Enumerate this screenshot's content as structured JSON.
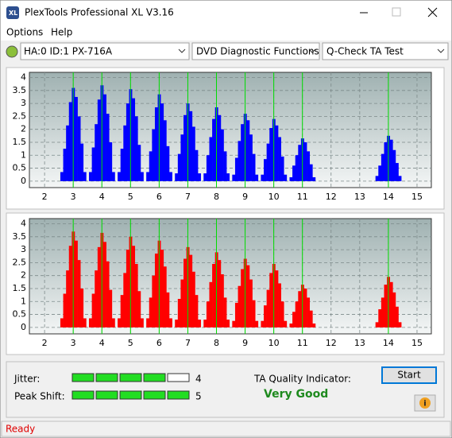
{
  "window": {
    "title": "PlexTools Professional XL V3.16"
  },
  "menu": [
    "Options",
    "Help"
  ],
  "toolbar": {
    "drive": "HA:0 ID:1  PX-716A",
    "function": "DVD Diagnostic Functions",
    "test": "Q-Check TA Test"
  },
  "chart_data": [
    {
      "type": "bar",
      "color": "#0000ff",
      "grid": true,
      "marker_color": "#00dd00",
      "xlim": [
        1.47,
        15.5
      ],
      "ylim": [
        -0.25,
        4.2
      ],
      "xticks": [
        2,
        3,
        4,
        5,
        6,
        7,
        8,
        9,
        10,
        11,
        12,
        13,
        14,
        15
      ],
      "yticks": [
        0,
        0.5,
        1,
        1.5,
        2,
        2.5,
        3,
        3.5,
        4
      ],
      "markers": [
        3,
        4,
        5,
        6,
        7,
        8,
        9,
        10,
        11,
        14
      ],
      "x": [
        2.6,
        2.7,
        2.8,
        2.9,
        3,
        3.1,
        3.2,
        3.3,
        3.4,
        3.6,
        3.7,
        3.8,
        3.9,
        4,
        4.1,
        4.2,
        4.3,
        4.4,
        4.6,
        4.7,
        4.8,
        4.9,
        5,
        5.1,
        5.2,
        5.3,
        5.4,
        5.6,
        5.7,
        5.8,
        5.9,
        6,
        6.1,
        6.2,
        6.3,
        6.4,
        6.6,
        6.7,
        6.8,
        6.9,
        7,
        7.1,
        7.2,
        7.3,
        7.4,
        7.6,
        7.7,
        7.8,
        7.9,
        8,
        8.1,
        8.2,
        8.3,
        8.4,
        8.6,
        8.7,
        8.8,
        8.9,
        9,
        9.1,
        9.2,
        9.3,
        9.4,
        9.6,
        9.7,
        9.8,
        9.9,
        10,
        10.1,
        10.2,
        10.3,
        10.4,
        10.6,
        10.7,
        10.8,
        10.9,
        11,
        11.1,
        11.2,
        11.3,
        11.4,
        13.6,
        13.7,
        13.8,
        13.9,
        14,
        14.1,
        14.2,
        14.3,
        14.4
      ],
      "values": [
        0.35,
        1.25,
        2.15,
        3.05,
        3.6,
        3.25,
        2.5,
        1.45,
        0.35,
        0.35,
        1.3,
        2.2,
        3.15,
        3.7,
        3.35,
        2.6,
        1.5,
        0.35,
        0.35,
        1.25,
        2.15,
        3.0,
        3.55,
        3.2,
        2.5,
        1.4,
        0.35,
        0.35,
        1.15,
        2.0,
        2.85,
        3.35,
        3.0,
        2.35,
        1.35,
        0.35,
        0.3,
        1.05,
        1.8,
        2.55,
        3.0,
        2.7,
        2.1,
        1.2,
        0.3,
        0.3,
        1.0,
        1.7,
        2.4,
        2.85,
        2.55,
        2.0,
        1.15,
        0.3,
        0.25,
        0.9,
        1.55,
        2.2,
        2.6,
        2.35,
        1.8,
        1.05,
        0.25,
        0.25,
        0.85,
        1.45,
        2.05,
        2.4,
        2.15,
        1.7,
        0.95,
        0.25,
        0.15,
        0.6,
        1.0,
        1.4,
        1.65,
        1.5,
        1.15,
        0.65,
        0.15,
        0.2,
        0.6,
        1.05,
        1.5,
        1.75,
        1.6,
        1.2,
        0.7,
        0.2
      ]
    },
    {
      "type": "bar",
      "color": "#ff0000",
      "grid": true,
      "marker_color": "#00dd00",
      "xlim": [
        1.47,
        15.5
      ],
      "ylim": [
        -0.25,
        4.2
      ],
      "xticks": [
        2,
        3,
        4,
        5,
        6,
        7,
        8,
        9,
        10,
        11,
        12,
        13,
        14,
        15
      ],
      "yticks": [
        0,
        0.5,
        1,
        1.5,
        2,
        2.5,
        3,
        3.5,
        4
      ],
      "markers": [
        3,
        4,
        5,
        6,
        7,
        8,
        9,
        10,
        11,
        14
      ],
      "x": [
        2.6,
        2.7,
        2.8,
        2.9,
        3,
        3.1,
        3.2,
        3.3,
        3.4,
        3.6,
        3.7,
        3.8,
        3.9,
        4,
        4.1,
        4.2,
        4.3,
        4.4,
        4.6,
        4.7,
        4.8,
        4.9,
        5,
        5.1,
        5.2,
        5.3,
        5.4,
        5.6,
        5.7,
        5.8,
        5.9,
        6,
        6.1,
        6.2,
        6.3,
        6.4,
        6.6,
        6.7,
        6.8,
        6.9,
        7,
        7.1,
        7.2,
        7.3,
        7.4,
        7.6,
        7.7,
        7.8,
        7.9,
        8,
        8.1,
        8.2,
        8.3,
        8.4,
        8.6,
        8.7,
        8.8,
        8.9,
        9,
        9.1,
        9.2,
        9.3,
        9.4,
        9.6,
        9.7,
        9.8,
        9.9,
        10,
        10.1,
        10.2,
        10.3,
        10.4,
        10.6,
        10.7,
        10.8,
        10.9,
        11,
        11.1,
        11.2,
        11.3,
        11.4,
        13.6,
        13.7,
        13.8,
        13.9,
        14,
        14.1,
        14.2,
        14.3,
        14.4
      ],
      "values": [
        0.35,
        1.3,
        2.2,
        3.15,
        3.7,
        3.35,
        2.6,
        1.5,
        0.35,
        0.35,
        1.3,
        2.2,
        3.1,
        3.65,
        3.3,
        2.55,
        1.45,
        0.35,
        0.35,
        1.25,
        2.1,
        3.0,
        3.5,
        3.15,
        2.45,
        1.4,
        0.35,
        0.35,
        1.15,
        2.0,
        2.85,
        3.35,
        3.0,
        2.35,
        1.35,
        0.35,
        0.3,
        1.1,
        1.85,
        2.65,
        3.1,
        2.8,
        2.15,
        1.25,
        0.3,
        0.3,
        1.0,
        1.75,
        2.45,
        2.9,
        2.6,
        2.05,
        1.15,
        0.3,
        0.25,
        0.95,
        1.6,
        2.25,
        2.65,
        2.4,
        1.85,
        1.05,
        0.25,
        0.25,
        0.85,
        1.45,
        2.1,
        2.45,
        2.2,
        1.7,
        1.0,
        0.25,
        0.15,
        0.6,
        1.0,
        1.4,
        1.65,
        1.5,
        1.15,
        0.65,
        0.15,
        0.2,
        0.7,
        1.15,
        1.65,
        1.95,
        1.75,
        1.35,
        0.8,
        0.2
      ]
    }
  ],
  "jitter": {
    "label": "Jitter:",
    "value": 4,
    "max": 5
  },
  "peak_shift": {
    "label": "Peak Shift:",
    "value": 5,
    "max": 5
  },
  "ta_quality": {
    "label": "TA Quality Indicator:",
    "rating": "Very Good"
  },
  "start_button": "Start",
  "status": "Ready"
}
